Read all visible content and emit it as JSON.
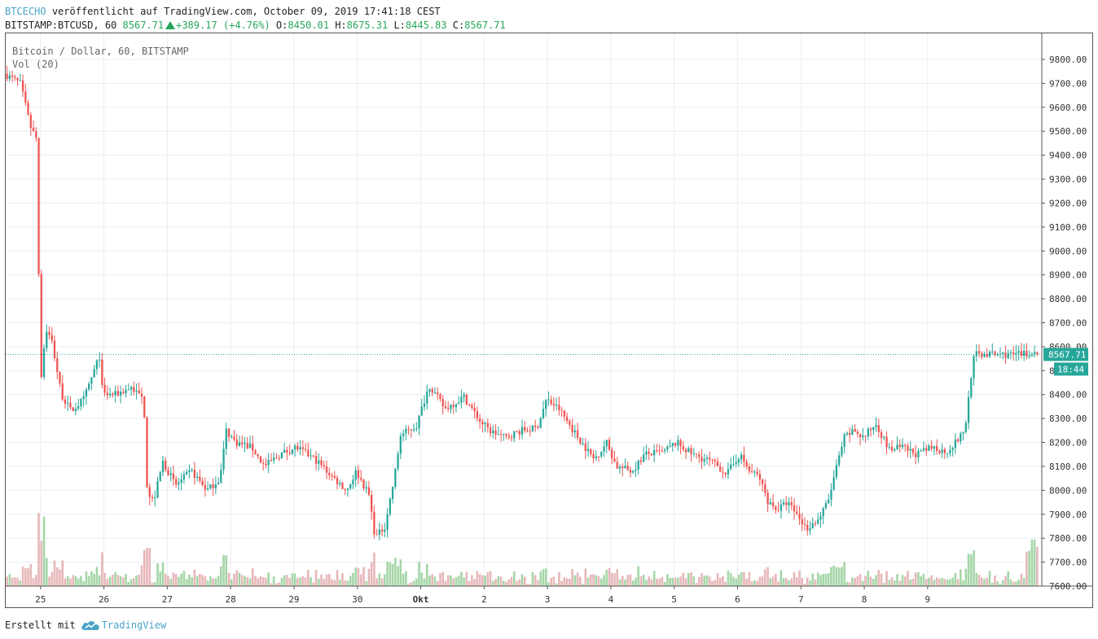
{
  "header": {
    "brand": "BTCECHO",
    "published_text": "veröffentlicht auf TradingView.com, October 09, 2019 17:41:18 CEST",
    "symbol_line": "BITSTAMP:BTCUSD, 60",
    "last_price": "8567.71",
    "change": "+389.17 (+4.76%)",
    "o_label": "O:",
    "o_value": "8450.01",
    "h_label": "H:",
    "h_value": "8675.31",
    "l_label": "L:",
    "l_value": "8445.83",
    "c_label": "C:",
    "c_value": "8567.71"
  },
  "legend": {
    "series_title": "Bitcoin / Dollar, 60, BITSTAMP",
    "volume_title": "Vol (20)"
  },
  "footer": {
    "created_with": "Erstellt mit",
    "logo_text": "TradingView",
    "logo_icon": "tradingview-cloud-icon"
  },
  "colors": {
    "up": "#26a69a",
    "down": "#ef5350",
    "up_volume": "#a5d6a7",
    "down_volume": "#e7b7b9",
    "grid": "#e9eef2",
    "price_line": "#26a69a"
  },
  "chart_data": {
    "type": "candlestick",
    "title": "Bitcoin / Dollar, 60, BITSTAMP",
    "timeframe": "60",
    "ylim": [
      7600,
      9850
    ],
    "yticks": [
      7600,
      7700,
      7800,
      7900,
      8000,
      8100,
      8200,
      8300,
      8400,
      8500,
      8600,
      8700,
      8800,
      9000,
      9100,
      9200,
      9300,
      9400,
      9500,
      9600,
      9700,
      9800
    ],
    "ytick_labels": [
      "7600.00",
      "7700.00",
      "7800.00",
      "7900.00",
      "8000.00",
      "8100.00",
      "8200.00",
      "8300.00",
      "8400.00",
      "8500.00",
      "8600.00",
      "8700.00",
      "8800.00",
      "9000.00",
      "9100.00",
      "9200.00",
      "9300.00",
      "9400.00",
      "9500.00",
      "9600.00",
      "9700.00",
      "9800.00"
    ],
    "hidden_ytick_labels": [
      "8900.00"
    ],
    "ytick_labels_all": [
      "9800.00",
      "9700.00",
      "9600.00",
      "9500.00",
      "9400.00",
      "9300.00",
      "9200.00",
      "9100.00",
      "9000.00",
      "8900.00",
      "8800.00",
      "8700.00",
      "8600.00",
      "8500.00",
      "8400.00",
      "8300.00",
      "8200.00",
      "8100.00",
      "8000.00",
      "7900.00",
      "7800.00",
      "7700.00",
      "7600.00"
    ],
    "xticks": [
      "25",
      "26",
      "27",
      "28",
      "29",
      "30",
      "Okt",
      "2",
      "3",
      "4",
      "5",
      "6",
      "7",
      "8",
      "9"
    ],
    "x_start_day": 24.45,
    "x_end_day": 40.75,
    "grid": true,
    "last_price_label": "8567.71",
    "countdown_label": "18:44",
    "last_price_value": 8567.71,
    "path_keypoints": [
      [
        24.45,
        9740
      ],
      [
        24.7,
        9700
      ],
      [
        24.86,
        9520
      ],
      [
        24.95,
        9470
      ],
      [
        24.98,
        9300
      ],
      [
        25.0,
        8600
      ],
      [
        25.03,
        8450
      ],
      [
        25.1,
        8680
      ],
      [
        25.2,
        8620
      ],
      [
        25.35,
        8400
      ],
      [
        25.5,
        8330
      ],
      [
        25.7,
        8380
      ],
      [
        25.95,
        8560
      ],
      [
        26.0,
        8400
      ],
      [
        26.2,
        8400
      ],
      [
        26.45,
        8430
      ],
      [
        26.65,
        8380
      ],
      [
        26.7,
        8000
      ],
      [
        26.8,
        7950
      ],
      [
        26.95,
        8120
      ],
      [
        27.15,
        8020
      ],
      [
        27.4,
        8080
      ],
      [
        27.65,
        8000
      ],
      [
        27.85,
        8050
      ],
      [
        27.95,
        8250
      ],
      [
        28.1,
        8200
      ],
      [
        28.35,
        8180
      ],
      [
        28.55,
        8100
      ],
      [
        28.8,
        8150
      ],
      [
        29.05,
        8180
      ],
      [
        29.35,
        8130
      ],
      [
        29.65,
        8050
      ],
      [
        29.85,
        8000
      ],
      [
        30.0,
        8080
      ],
      [
        30.2,
        7980
      ],
      [
        30.3,
        7800
      ],
      [
        30.45,
        7850
      ],
      [
        30.6,
        8050
      ],
      [
        30.7,
        8230
      ],
      [
        30.95,
        8270
      ],
      [
        31.15,
        8440
      ],
      [
        31.4,
        8340
      ],
      [
        31.7,
        8390
      ],
      [
        31.95,
        8290
      ],
      [
        32.1,
        8250
      ],
      [
        32.35,
        8220
      ],
      [
        32.6,
        8250
      ],
      [
        32.85,
        8260
      ],
      [
        33.0,
        8380
      ],
      [
        33.2,
        8340
      ],
      [
        33.5,
        8220
      ],
      [
        33.75,
        8130
      ],
      [
        33.95,
        8200
      ],
      [
        34.1,
        8100
      ],
      [
        34.35,
        8080
      ],
      [
        34.55,
        8150
      ],
      [
        34.85,
        8160
      ],
      [
        35.05,
        8200
      ],
      [
        35.3,
        8150
      ],
      [
        35.6,
        8120
      ],
      [
        35.85,
        8070
      ],
      [
        36.05,
        8150
      ],
      [
        36.2,
        8080
      ],
      [
        36.35,
        8060
      ],
      [
        36.5,
        7950
      ],
      [
        36.65,
        7920
      ],
      [
        36.8,
        7950
      ],
      [
        36.95,
        7900
      ],
      [
        37.1,
        7840
      ],
      [
        37.3,
        7880
      ],
      [
        37.45,
        7960
      ],
      [
        37.55,
        8070
      ],
      [
        37.7,
        8220
      ],
      [
        37.85,
        8250
      ],
      [
        38.0,
        8220
      ],
      [
        38.2,
        8280
      ],
      [
        38.4,
        8170
      ],
      [
        38.6,
        8180
      ],
      [
        38.85,
        8150
      ],
      [
        39.1,
        8180
      ],
      [
        39.3,
        8160
      ],
      [
        39.45,
        8200
      ],
      [
        39.6,
        8250
      ],
      [
        39.7,
        8480
      ],
      [
        39.75,
        8567.71
      ]
    ],
    "volume_profile": "low baseline with spikes near 25 (~9490 crash), 26.7 and the final hours of Oct 9"
  }
}
